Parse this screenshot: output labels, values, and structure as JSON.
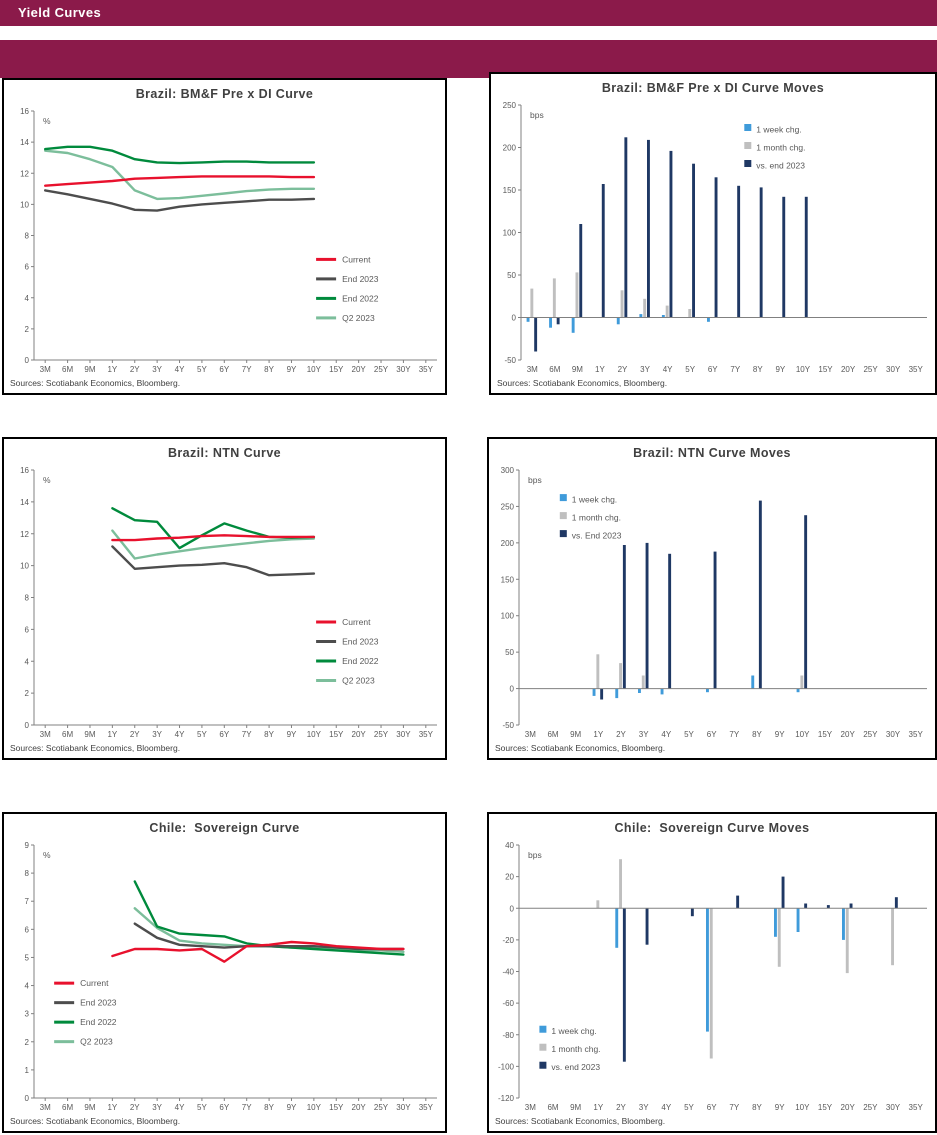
{
  "page": {
    "header_title": "Yield Curves"
  },
  "source_note": "Sources: Scotiabank Economics, Bloomberg.",
  "colors": {
    "maroon": "#8B1A4A",
    "current": "#E8112D",
    "end2023": "#4D4D4D",
    "end2022": "#008A3C",
    "q2": "#7CBE9B",
    "week": "#3F9BDA",
    "month": "#BFBFBF",
    "vs": "#1F3864",
    "axis_line": "#808080",
    "axis_text": "#595959",
    "title_text": "#404040"
  },
  "categories": [
    "3M",
    "6M",
    "9M",
    "1Y",
    "2Y",
    "3Y",
    "4Y",
    "5Y",
    "6Y",
    "7Y",
    "8Y",
    "9Y",
    "10Y",
    "15Y",
    "20Y",
    "25Y",
    "30Y",
    "35Y"
  ],
  "chart_data": [
    {
      "type": "line",
      "title": "Brazil: BM&F Pre x DI Curve",
      "unit": "%",
      "ylim": [
        0,
        16
      ],
      "ystep": 2,
      "legend": {
        "x": 0.7,
        "y": 0.6
      },
      "series": [
        {
          "name": "Current",
          "color": "current",
          "values": [
            11.2,
            11.3,
            11.4,
            11.5,
            11.65,
            11.7,
            11.75,
            11.8,
            11.8,
            11.8,
            11.8,
            11.75,
            11.75
          ]
        },
        {
          "name": "End 2023",
          "color": "end2023",
          "values": [
            10.9,
            10.65,
            10.35,
            10.05,
            9.65,
            9.6,
            9.85,
            10.0,
            10.1,
            10.2,
            10.3,
            10.3,
            10.35
          ]
        },
        {
          "name": "End 2022",
          "color": "end2022",
          "values": [
            13.55,
            13.7,
            13.7,
            13.45,
            12.9,
            12.7,
            12.65,
            12.7,
            12.75,
            12.75,
            12.7,
            12.7,
            12.7
          ]
        },
        {
          "name": "Q2 2023",
          "color": "q2",
          "values": [
            13.45,
            13.3,
            12.9,
            12.4,
            10.9,
            10.35,
            10.4,
            10.55,
            10.7,
            10.85,
            10.95,
            11.0,
            11.0
          ]
        }
      ]
    },
    {
      "type": "bar",
      "title": "Brazil: BM&F Pre x DI Curve Moves",
      "unit": "bps",
      "ylim": [
        -50,
        250
      ],
      "ystep": 50,
      "legend": {
        "x": 0.55,
        "y": 0.1
      },
      "series": [
        {
          "name": "1 week chg.",
          "color": "week",
          "values": [
            -5,
            -12,
            -18,
            null,
            -8,
            4,
            3,
            null,
            -5,
            null,
            null,
            null,
            null,
            null,
            null,
            null,
            null,
            null
          ]
        },
        {
          "name": "1 month chg.",
          "color": "month",
          "values": [
            34,
            46,
            53,
            null,
            32,
            22,
            14,
            10,
            null,
            null,
            null,
            null,
            null,
            null,
            null,
            null,
            null,
            null
          ]
        },
        {
          "name": "vs. end 2023",
          "color": "vs",
          "values": [
            -40,
            -8,
            110,
            157,
            212,
            209,
            196,
            181,
            165,
            155,
            153,
            142,
            142,
            null,
            null,
            null,
            null,
            null
          ]
        }
      ]
    },
    {
      "type": "line",
      "title": "Brazil: NTN Curve",
      "unit": "%",
      "ylim": [
        0,
        16
      ],
      "ystep": 2,
      "legend": {
        "x": 0.7,
        "y": 0.6
      },
      "series": [
        {
          "name": "Current",
          "color": "current",
          "values": [
            null,
            null,
            null,
            11.6,
            11.6,
            11.7,
            11.75,
            11.85,
            11.9,
            11.85,
            11.8,
            11.8,
            11.8
          ]
        },
        {
          "name": "End 2023",
          "color": "end2023",
          "values": [
            null,
            null,
            null,
            11.2,
            9.8,
            9.9,
            10.0,
            10.05,
            10.15,
            9.9,
            9.4,
            9.45,
            9.5
          ]
        },
        {
          "name": "End 2022",
          "color": "end2022",
          "values": [
            null,
            null,
            null,
            13.6,
            12.85,
            12.75,
            11.1,
            11.9,
            12.65,
            12.2,
            11.8,
            11.75,
            11.8
          ]
        },
        {
          "name": "Q2 2023",
          "color": "q2",
          "values": [
            null,
            null,
            null,
            12.2,
            10.45,
            10.7,
            10.9,
            11.1,
            11.25,
            11.4,
            11.55,
            11.65,
            11.7
          ]
        }
      ]
    },
    {
      "type": "bar",
      "title": "Brazil: NTN Curve Moves",
      "unit": "bps",
      "ylim": [
        -50,
        300
      ],
      "ystep": 50,
      "legend": {
        "x": 0.1,
        "y": 0.12
      },
      "series": [
        {
          "name": "1 week chg.",
          "color": "week",
          "values": [
            null,
            null,
            null,
            -10,
            -13,
            -6,
            -8,
            null,
            -5,
            null,
            18,
            null,
            -5,
            null,
            null,
            null,
            null,
            null
          ]
        },
        {
          "name": "1 month chg.",
          "color": "month",
          "values": [
            null,
            null,
            null,
            47,
            35,
            18,
            null,
            null,
            null,
            null,
            null,
            null,
            18,
            null,
            null,
            null,
            null,
            null
          ]
        },
        {
          "name": "vs. End 2023",
          "color": "vs",
          "values": [
            null,
            null,
            null,
            -15,
            197,
            200,
            185,
            null,
            188,
            null,
            258,
            null,
            238,
            null,
            null,
            null,
            null,
            null
          ]
        }
      ]
    },
    {
      "type": "line",
      "title": "Chile:  Sovereign Curve",
      "unit": "%",
      "ylim": [
        0,
        9
      ],
      "ystep": 1,
      "legend": {
        "x": 0.05,
        "y": 0.55
      },
      "series": [
        {
          "name": "Current",
          "color": "current",
          "values": [
            null,
            null,
            null,
            5.05,
            5.3,
            5.3,
            5.25,
            5.3,
            4.85,
            5.4,
            5.45,
            5.55,
            5.5,
            5.4,
            5.35,
            5.3,
            5.3
          ]
        },
        {
          "name": "End 2023",
          "color": "end2023",
          "values": [
            null,
            null,
            null,
            null,
            6.2,
            5.7,
            5.45,
            5.4,
            5.35,
            5.4,
            5.4,
            5.4,
            5.4,
            5.35,
            5.3,
            5.3,
            5.3
          ]
        },
        {
          "name": "End 2022",
          "color": "end2022",
          "values": [
            null,
            null,
            null,
            null,
            7.7,
            6.1,
            5.85,
            5.8,
            5.75,
            5.5,
            5.4,
            5.35,
            5.3,
            5.25,
            5.2,
            5.15,
            5.1
          ]
        },
        {
          "name": "Q2 2023",
          "color": "q2",
          "values": [
            null,
            null,
            null,
            null,
            6.75,
            6.05,
            5.6,
            5.5,
            5.45,
            5.4,
            5.4,
            5.35,
            5.35,
            5.3,
            5.25,
            5.25,
            5.2
          ]
        }
      ]
    },
    {
      "type": "bar",
      "title": "Chile:  Sovereign Curve Moves",
      "unit": "bps",
      "ylim": [
        -120,
        40
      ],
      "ystep": 20,
      "legend": {
        "x": 0.05,
        "y": 0.74
      },
      "series": [
        {
          "name": "1 week chg.",
          "color": "week",
          "values": [
            null,
            null,
            null,
            null,
            -25,
            null,
            null,
            null,
            -78,
            null,
            null,
            -18,
            -15,
            null,
            -20,
            null,
            null,
            null
          ]
        },
        {
          "name": "1 month chg.",
          "color": "month",
          "values": [
            null,
            null,
            null,
            5,
            31,
            null,
            null,
            null,
            -95,
            null,
            null,
            -37,
            null,
            null,
            -41,
            null,
            -36,
            null
          ]
        },
        {
          "name": "vs. end 2023",
          "color": "vs",
          "values": [
            null,
            null,
            null,
            null,
            -97,
            -23,
            null,
            -5,
            null,
            8,
            null,
            20,
            3,
            2,
            3,
            null,
            7,
            null
          ]
        }
      ]
    }
  ]
}
